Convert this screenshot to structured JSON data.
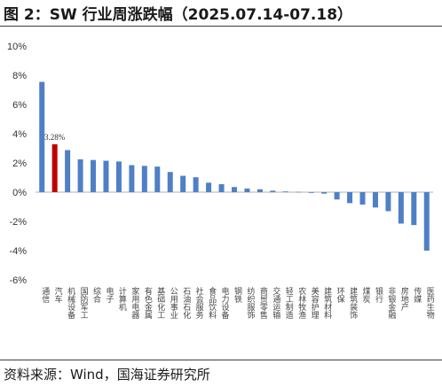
{
  "title": "图 2：SW 行业周涨跌幅（2025.07.14-07.18）",
  "source": "资料来源：Wind，国海证券研究所",
  "colors": {
    "bar": "#4f80c6",
    "highlight": "#c00000",
    "axis": "#b0b0b0",
    "text": "#333333"
  },
  "chart_data": {
    "type": "bar",
    "title": "",
    "xlabel": "",
    "ylabel": "",
    "ylim": [
      -6,
      10
    ],
    "yticks": [
      "-6%",
      "-4%",
      "-2%",
      "0%",
      "2%",
      "4%",
      "6%",
      "8%",
      "10%"
    ],
    "grid": false,
    "legend": "none",
    "categories": [
      "通信",
      "汽车",
      "机械设备",
      "国防军工",
      "综合",
      "电子",
      "计算机",
      "家用电器",
      "有色金属",
      "基础化工",
      "公用事业",
      "石油石化",
      "社会服务",
      "食品饮料",
      "电力设备",
      "钢铁",
      "纺织服饰",
      "商贸零售",
      "交通运输",
      "轻工制造",
      "农林牧渔",
      "美容护理",
      "建筑材料",
      "环保",
      "建筑装饰",
      "煤炭",
      "银行",
      "非银金融",
      "房地产",
      "传媒",
      "医药生物"
    ],
    "values": [
      7.55,
      3.28,
      2.88,
      2.25,
      2.2,
      2.15,
      2.1,
      1.85,
      1.8,
      1.75,
      1.38,
      1.12,
      1.02,
      0.65,
      0.55,
      0.35,
      0.25,
      0.2,
      0.1,
      0.05,
      0.02,
      -0.05,
      -0.1,
      -0.5,
      -0.75,
      -0.85,
      -1.05,
      -1.3,
      -2.15,
      -2.25,
      -4.0
    ],
    "highlight_index": 1,
    "data_labels": [
      {
        "index": 1,
        "text": "3.28%"
      }
    ]
  }
}
